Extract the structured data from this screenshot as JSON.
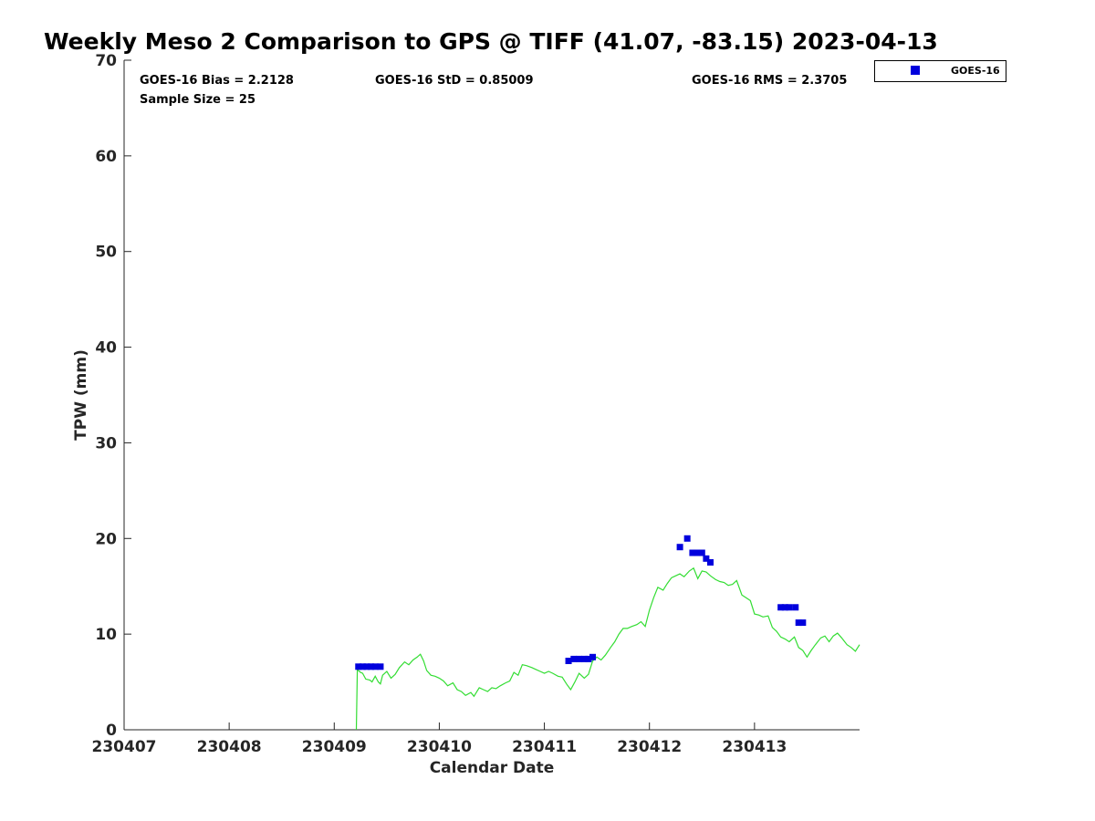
{
  "chart_data": {
    "type": "scatter",
    "title": "Weekly Meso 2 Comparison to GPS @ TIFF (41.07, -83.15) 2023-04-13",
    "xlabel": "Calendar Date",
    "ylabel": "TPW (mm)",
    "xlim": [
      230407,
      230414
    ],
    "ylim": [
      0,
      70
    ],
    "x_ticks": [
      "230407",
      "230408",
      "230409",
      "230410",
      "230411",
      "230412",
      "230413"
    ],
    "y_ticks": [
      "0",
      "10",
      "20",
      "30",
      "40",
      "50",
      "60",
      "70"
    ],
    "grid": false,
    "legend_position": "outside top-right",
    "stats": {
      "bias": "GOES-16 Bias = 2.2128",
      "std": "GOES-16 StD = 0.85009",
      "rms": "GOES-16 RMS = 2.3705",
      "sample": "Sample Size = 25"
    },
    "series": [
      {
        "name": "GOES-16",
        "kind": "scatter",
        "marker": "square",
        "color": "#0000dd",
        "points": [
          [
            230409.23,
            6.6
          ],
          [
            230409.27,
            6.6
          ],
          [
            230409.31,
            6.6
          ],
          [
            230409.35,
            6.6
          ],
          [
            230409.39,
            6.6
          ],
          [
            230409.44,
            6.6
          ],
          [
            230411.23,
            7.2
          ],
          [
            230411.28,
            7.4
          ],
          [
            230411.33,
            7.4
          ],
          [
            230411.38,
            7.4
          ],
          [
            230411.42,
            7.4
          ],
          [
            230411.46,
            7.6
          ],
          [
            230412.29,
            19.1
          ],
          [
            230412.36,
            20.0
          ],
          [
            230412.41,
            18.5
          ],
          [
            230412.45,
            18.5
          ],
          [
            230412.5,
            18.5
          ],
          [
            230412.54,
            17.9
          ],
          [
            230412.58,
            17.5
          ],
          [
            230413.25,
            12.8
          ],
          [
            230413.29,
            12.8
          ],
          [
            230413.33,
            12.8
          ],
          [
            230413.39,
            12.8
          ],
          [
            230413.42,
            11.2
          ],
          [
            230413.46,
            11.2
          ]
        ]
      },
      {
        "name": "",
        "kind": "line",
        "color": "#33dd33",
        "points": [
          [
            230409.21,
            0.0
          ],
          [
            230409.22,
            6.3
          ],
          [
            230409.25,
            6.0
          ],
          [
            230409.27,
            5.9
          ],
          [
            230409.3,
            5.3
          ],
          [
            230409.34,
            5.2
          ],
          [
            230409.36,
            5.0
          ],
          [
            230409.39,
            5.6
          ],
          [
            230409.42,
            5.0
          ],
          [
            230409.44,
            4.8
          ],
          [
            230409.46,
            5.7
          ],
          [
            230409.5,
            6.1
          ],
          [
            230409.54,
            5.4
          ],
          [
            230409.58,
            5.8
          ],
          [
            230409.62,
            6.5
          ],
          [
            230409.67,
            7.1
          ],
          [
            230409.71,
            6.8
          ],
          [
            230409.75,
            7.3
          ],
          [
            230409.79,
            7.6
          ],
          [
            230409.82,
            7.9
          ],
          [
            230409.85,
            7.2
          ],
          [
            230409.88,
            6.2
          ],
          [
            230409.92,
            5.7
          ],
          [
            230409.96,
            5.6
          ],
          [
            230410.0,
            5.4
          ],
          [
            230410.04,
            5.1
          ],
          [
            230410.08,
            4.6
          ],
          [
            230410.13,
            4.9
          ],
          [
            230410.17,
            4.2
          ],
          [
            230410.21,
            4.0
          ],
          [
            230410.25,
            3.6
          ],
          [
            230410.3,
            3.9
          ],
          [
            230410.33,
            3.5
          ],
          [
            230410.38,
            4.4
          ],
          [
            230410.42,
            4.2
          ],
          [
            230410.46,
            4.0
          ],
          [
            230410.5,
            4.4
          ],
          [
            230410.54,
            4.3
          ],
          [
            230410.58,
            4.6
          ],
          [
            230410.63,
            4.9
          ],
          [
            230410.67,
            5.1
          ],
          [
            230410.71,
            6.0
          ],
          [
            230410.75,
            5.7
          ],
          [
            230410.79,
            6.8
          ],
          [
            230410.83,
            6.7
          ],
          [
            230410.88,
            6.5
          ],
          [
            230410.92,
            6.3
          ],
          [
            230410.96,
            6.1
          ],
          [
            230411.0,
            5.9
          ],
          [
            230411.04,
            6.1
          ],
          [
            230411.08,
            5.9
          ],
          [
            230411.13,
            5.6
          ],
          [
            230411.17,
            5.5
          ],
          [
            230411.21,
            4.8
          ],
          [
            230411.25,
            4.2
          ],
          [
            230411.29,
            5.0
          ],
          [
            230411.33,
            5.9
          ],
          [
            230411.38,
            5.4
          ],
          [
            230411.42,
            5.8
          ],
          [
            230411.46,
            7.2
          ],
          [
            230411.5,
            7.6
          ],
          [
            230411.54,
            7.3
          ],
          [
            230411.58,
            7.8
          ],
          [
            230411.63,
            8.6
          ],
          [
            230411.67,
            9.2
          ],
          [
            230411.71,
            10.0
          ],
          [
            230411.75,
            10.6
          ],
          [
            230411.79,
            10.6
          ],
          [
            230411.83,
            10.8
          ],
          [
            230411.88,
            11.0
          ],
          [
            230411.92,
            11.3
          ],
          [
            230411.96,
            10.8
          ],
          [
            230412.0,
            12.5
          ],
          [
            230412.04,
            13.8
          ],
          [
            230412.08,
            14.9
          ],
          [
            230412.13,
            14.6
          ],
          [
            230412.17,
            15.3
          ],
          [
            230412.21,
            15.9
          ],
          [
            230412.25,
            16.1
          ],
          [
            230412.29,
            16.3
          ],
          [
            230412.33,
            16.0
          ],
          [
            230412.38,
            16.6
          ],
          [
            230412.42,
            16.9
          ],
          [
            230412.46,
            15.8
          ],
          [
            230412.5,
            16.6
          ],
          [
            230412.54,
            16.5
          ],
          [
            230412.58,
            16.1
          ],
          [
            230412.63,
            15.7
          ],
          [
            230412.67,
            15.5
          ],
          [
            230412.71,
            15.4
          ],
          [
            230412.75,
            15.1
          ],
          [
            230412.79,
            15.2
          ],
          [
            230412.83,
            15.6
          ],
          [
            230412.88,
            14.1
          ],
          [
            230412.92,
            13.8
          ],
          [
            230412.96,
            13.5
          ],
          [
            230413.0,
            12.1
          ],
          [
            230413.04,
            12.0
          ],
          [
            230413.08,
            11.8
          ],
          [
            230413.13,
            11.9
          ],
          [
            230413.17,
            10.7
          ],
          [
            230413.21,
            10.3
          ],
          [
            230413.25,
            9.7
          ],
          [
            230413.29,
            9.5
          ],
          [
            230413.33,
            9.2
          ],
          [
            230413.38,
            9.7
          ],
          [
            230413.42,
            8.6
          ],
          [
            230413.46,
            8.3
          ],
          [
            230413.5,
            7.6
          ],
          [
            230413.54,
            8.3
          ],
          [
            230413.58,
            8.9
          ],
          [
            230413.63,
            9.6
          ],
          [
            230413.67,
            9.8
          ],
          [
            230413.71,
            9.2
          ],
          [
            230413.75,
            9.8
          ],
          [
            230413.79,
            10.1
          ],
          [
            230413.83,
            9.6
          ],
          [
            230413.88,
            8.9
          ],
          [
            230413.92,
            8.6
          ],
          [
            230413.96,
            8.2
          ],
          [
            230414.0,
            8.9
          ]
        ]
      }
    ]
  }
}
